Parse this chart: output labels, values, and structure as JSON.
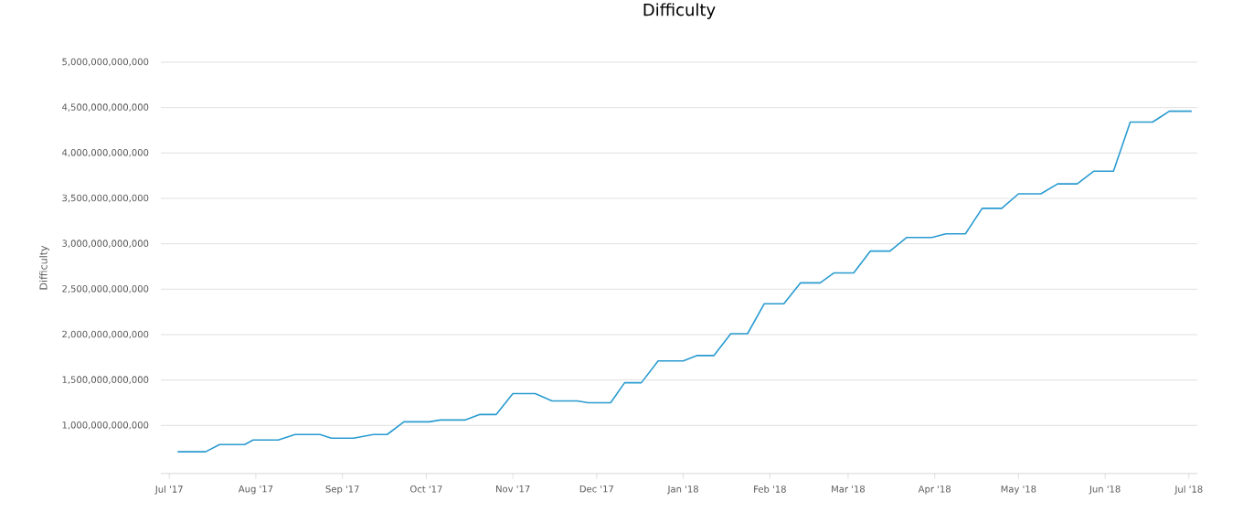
{
  "chart_data": {
    "type": "line",
    "title": "Difficulty",
    "ylabel": "Difficulty",
    "x": [
      "2017-07-04",
      "2017-07-14",
      "2017-07-19",
      "2017-07-28",
      "2017-07-31",
      "2017-08-09",
      "2017-08-15",
      "2017-08-24",
      "2017-08-28",
      "2017-09-05",
      "2017-09-12",
      "2017-09-17",
      "2017-09-23",
      "2017-10-02",
      "2017-10-06",
      "2017-10-15",
      "2017-10-20",
      "2017-10-26",
      "2017-11-01",
      "2017-11-09",
      "2017-11-15",
      "2017-11-24",
      "2017-11-28",
      "2017-12-06",
      "2017-12-11",
      "2017-12-17",
      "2017-12-23",
      "2018-01-01",
      "2018-01-06",
      "2018-01-12",
      "2018-01-18",
      "2018-01-24",
      "2018-01-30",
      "2018-02-06",
      "2018-02-12",
      "2018-02-19",
      "2018-02-24",
      "2018-03-03",
      "2018-03-09",
      "2018-03-16",
      "2018-03-22",
      "2018-03-31",
      "2018-04-05",
      "2018-04-12",
      "2018-04-18",
      "2018-04-25",
      "2018-05-01",
      "2018-05-09",
      "2018-05-15",
      "2018-05-22",
      "2018-05-28",
      "2018-06-04",
      "2018-06-10",
      "2018-06-18",
      "2018-06-24",
      "2018-07-02"
    ],
    "series": [
      {
        "color": "#2a9bd0",
        "values": [
          710000000000,
          710000000000,
          790000000000,
          790000000000,
          840000000000,
          840000000000,
          900000000000,
          900000000000,
          860000000000,
          860000000000,
          900000000000,
          900000000000,
          1040000000000,
          1040000000000,
          1060000000000,
          1060000000000,
          1120000000000,
          1120000000000,
          1350000000000,
          1350000000000,
          1270000000000,
          1270000000000,
          1250000000000,
          1250000000000,
          1470000000000,
          1470000000000,
          1710000000000,
          1710000000000,
          1770000000000,
          1770000000000,
          2010000000000,
          2010000000000,
          2340000000000,
          2340000000000,
          2570000000000,
          2570000000000,
          2680000000000,
          2680000000000,
          2920000000000,
          2920000000000,
          3070000000000,
          3070000000000,
          3110000000000,
          3110000000000,
          3390000000000,
          3390000000000,
          3550000000000,
          3550000000000,
          3660000000000,
          3660000000000,
          3800000000000,
          3800000000000,
          4340000000000,
          4340000000000,
          4460000000000,
          4460000000000
        ]
      }
    ],
    "xlim": [
      "2017-06-28",
      "2018-07-04"
    ],
    "xticks": [
      {
        "value": "2017-07-01",
        "label": "Jul '17"
      },
      {
        "value": "2017-08-01",
        "label": "Aug '17"
      },
      {
        "value": "2017-09-01",
        "label": "Sep '17"
      },
      {
        "value": "2017-10-01",
        "label": "Oct '17"
      },
      {
        "value": "2017-11-01",
        "label": "Nov '17"
      },
      {
        "value": "2017-12-01",
        "label": "Dec '17"
      },
      {
        "value": "2018-01-01",
        "label": "Jan '18"
      },
      {
        "value": "2018-02-01",
        "label": "Feb '18"
      },
      {
        "value": "2018-03-01",
        "label": "Mar '18"
      },
      {
        "value": "2018-04-01",
        "label": "Apr '18"
      },
      {
        "value": "2018-05-01",
        "label": "May '18"
      },
      {
        "value": "2018-06-01",
        "label": "Jun '18"
      },
      {
        "value": "2018-07-01",
        "label": "Jul '18"
      }
    ],
    "ylim": [
      470000000000,
      5000000000000
    ],
    "yticks": [
      {
        "value": 1000000000000,
        "label": "1,000,000,000,000"
      },
      {
        "value": 1500000000000,
        "label": "1,500,000,000,000"
      },
      {
        "value": 2000000000000,
        "label": "2,000,000,000,000"
      },
      {
        "value": 2500000000000,
        "label": "2,500,000,000,000"
      },
      {
        "value": 3000000000000,
        "label": "3,000,000,000,000"
      },
      {
        "value": 3500000000000,
        "label": "3,500,000,000,000"
      },
      {
        "value": 4000000000000,
        "label": "4,000,000,000,000"
      },
      {
        "value": 4500000000000,
        "label": "4,500,000,000,000"
      },
      {
        "value": 5000000000000,
        "label": "5,000,000,000,000"
      }
    ],
    "grid": "y",
    "marker": "none",
    "line_style": "solid"
  }
}
